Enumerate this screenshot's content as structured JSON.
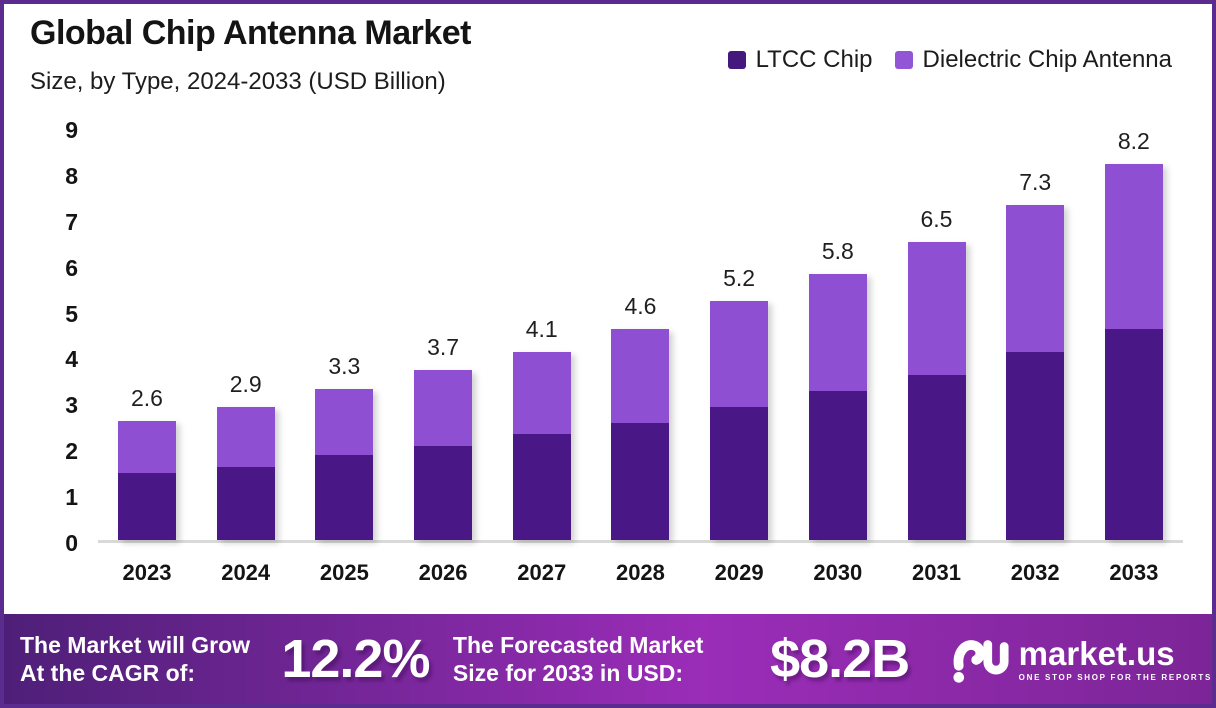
{
  "frame": {
    "border_color": "#5b2b8f",
    "background": "#ffffff"
  },
  "header": {
    "title": "Global Chip Antenna Market",
    "subtitle": "Size, by Type, 2024-2033 (USD Billion)"
  },
  "legend": [
    {
      "label": "LTCC Chip",
      "color": "#45187e"
    },
    {
      "label": "Dielectric Chip Antenna",
      "color": "#9155d6"
    }
  ],
  "chart_data": {
    "type": "bar",
    "stacked": true,
    "title": "Global Chip Antenna Market Size, by Type, 2024-2033 (USD Billion)",
    "categories": [
      "2023",
      "2024",
      "2025",
      "2026",
      "2027",
      "2028",
      "2029",
      "2030",
      "2031",
      "2032",
      "2033"
    ],
    "series": [
      {
        "name": "LTCC Chip",
        "color": "#4a1787",
        "values": [
          1.45,
          1.6,
          1.85,
          2.05,
          2.3,
          2.55,
          2.9,
          3.25,
          3.6,
          4.1,
          4.6
        ]
      },
      {
        "name": "Dielectric Chip Antenna",
        "color": "#8e4fd2",
        "values": [
          1.15,
          1.3,
          1.45,
          1.65,
          1.8,
          2.05,
          2.3,
          2.55,
          2.9,
          3.2,
          3.6
        ]
      }
    ],
    "totals_labels": [
      "2.6",
      "2.9",
      "3.3",
      "3.7",
      "4.1",
      "4.6",
      "5.2",
      "5.8",
      "6.5",
      "7.3",
      "8.2"
    ],
    "y_ticks": [
      0,
      1,
      2,
      3,
      4,
      5,
      6,
      7,
      8,
      9
    ],
    "ylim": [
      0,
      9
    ],
    "grid": false,
    "legend_position": "top-right",
    "axis_line_color": "#d9d9d9"
  },
  "banner": {
    "gradient": [
      "#4e1f78",
      "#9b2db8",
      "#7c2597"
    ],
    "cagr": {
      "line1": "The Market will Grow",
      "line2": "At the CAGR of:",
      "value": "12.2%"
    },
    "forecast": {
      "line1": "The Forecasted Market",
      "line2": "Size for 2033 in USD:",
      "value": "$8.2B"
    },
    "logo": {
      "name": "market.us",
      "tagline": "ONE STOP SHOP FOR THE REPORTS"
    }
  }
}
